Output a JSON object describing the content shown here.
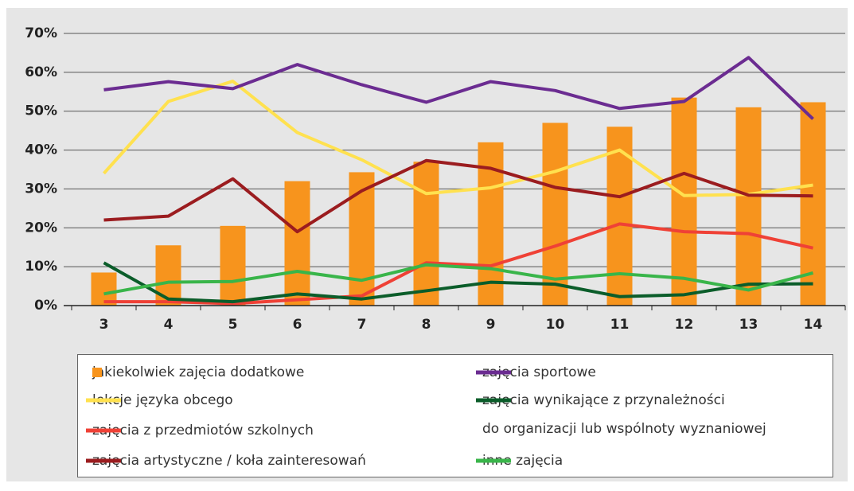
{
  "chart_data": {
    "type": "line",
    "categories": [
      "3",
      "4",
      "5",
      "6",
      "7",
      "8",
      "9",
      "10",
      "11",
      "12",
      "13",
      "14"
    ],
    "ylim": [
      0,
      70
    ],
    "yticks": [
      {
        "value": 0,
        "label": "0%"
      },
      {
        "value": 10,
        "label": "10%"
      },
      {
        "value": 20,
        "label": "20%"
      },
      {
        "value": 30,
        "label": "30%"
      },
      {
        "value": 40,
        "label": "40%"
      },
      {
        "value": 50,
        "label": "50%"
      },
      {
        "value": 60,
        "label": "60%"
      },
      {
        "value": 70,
        "label": "70%"
      }
    ],
    "grid": true,
    "series": [
      {
        "name": "jakiekolwiek zajęcia dodatkowe",
        "type": "bar",
        "color": "#f7941d",
        "values": [
          8.5,
          15.5,
          20.5,
          32,
          34.3,
          37,
          42,
          47,
          46,
          53.5,
          51,
          52.3
        ]
      },
      {
        "name": "lekcje języka obcego",
        "color": "#ffe14f",
        "values": [
          34,
          52.5,
          57.7,
          44.5,
          37.5,
          28.8,
          30.3,
          34.5,
          40,
          28.3,
          28.6,
          31
        ]
      },
      {
        "name": "zajęcia z przedmiotów szkolnych",
        "color": "#ef4136",
        "values": [
          1,
          1,
          0.5,
          1.5,
          2.5,
          11,
          10.2,
          15.3,
          21,
          19,
          18.5,
          14.8
        ]
      },
      {
        "name": "zajęcia artystyczne / koła zainteresowań",
        "color": "#9b1c1f",
        "values": [
          22,
          23,
          32.6,
          19,
          29.5,
          37.3,
          35.3,
          30.4,
          28,
          34,
          28.4,
          28.2
        ]
      },
      {
        "name": "zajęcia sportowe",
        "color": "#6b2c91",
        "values": [
          55.5,
          57.6,
          55.8,
          62,
          56.8,
          52.3,
          57.6,
          55.3,
          50.7,
          52.5,
          63.8,
          48
        ]
      },
      {
        "name": "zajęcia wynikające z przynależności\ndo organizacji lub wspólnoty wyznaniowej",
        "color": "#0b5d2a",
        "values": [
          11,
          1.7,
          1,
          3,
          1.7,
          3.8,
          6,
          5.5,
          2.3,
          2.8,
          5.5,
          5.6
        ]
      },
      {
        "name": "inne zajęcia",
        "color": "#39b54a",
        "values": [
          3,
          6,
          6.2,
          8.8,
          6.5,
          10.5,
          9.5,
          6.8,
          8.2,
          7,
          4,
          8.4
        ]
      }
    ]
  }
}
